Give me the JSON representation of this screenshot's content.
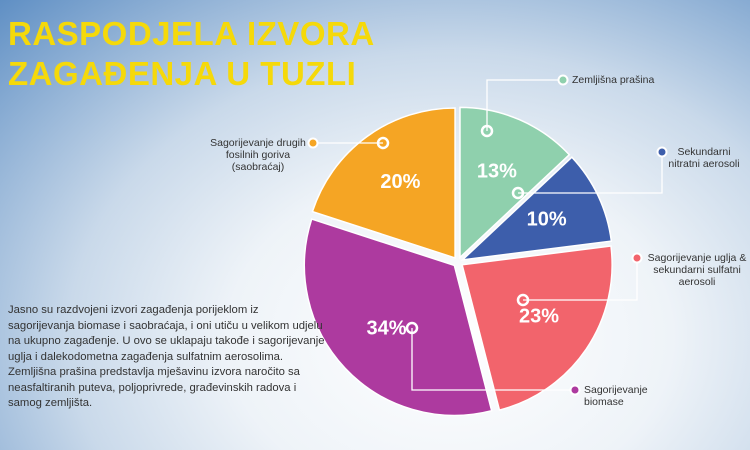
{
  "chart_data": {
    "type": "pie",
    "title": "RASPODJELA IZVORA ZAGAĐENJA U TUZLI",
    "categories": [
      "Zemljišna prašina",
      "Sekundarni nitratni aerosoli",
      "Sagorijevanje uglja & sekundarni sulfatni aerosoli",
      "Sagorijevanje biomase",
      "Sagorijevanje drugih fosilnih goriva (saobraćaj)"
    ],
    "values": [
      13,
      10,
      23,
      34,
      20
    ],
    "value_labels": [
      "13%",
      "10%",
      "23%",
      "34%",
      "20%"
    ],
    "colors": [
      "#8fd0ad",
      "#3d5eab",
      "#f2646c",
      "#ad3a9f",
      "#f5a524"
    ]
  },
  "description": "Jasno su razdvojeni izvori zagađenja porijeklom iz sagorijevanja biomase i saobraćaja, i oni utiču u velikom udjelu na ukupno zagađenje. U ovo se uklapaju takođe i sagorijevanje uglja i dalekodometna zagađenja sulfatnim aerosolima. Zemljišna prašina predstavlja mješavinu izvora naročito sa neasfaltiranih puteva, poljoprivrede, građevinskih radova i samog zemljišta."
}
